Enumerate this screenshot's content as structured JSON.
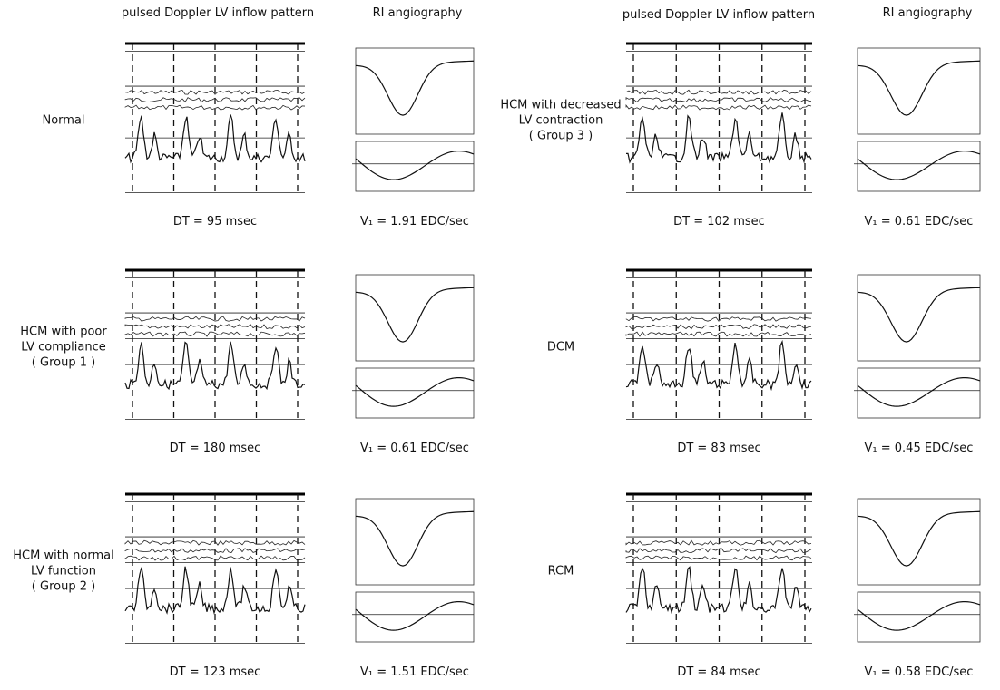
{
  "headers": [
    "pulsed Doppler LV inflow pattern",
    "RI angiography",
    "pulsed Doppler LV inflow pattern",
    "RI angiography"
  ],
  "panels": [
    {
      "label": [
        "Normal"
      ],
      "dt": "DT = 95 msec",
      "v1": "V₁ = 1.91 EDC/sec"
    },
    {
      "label": [
        "HCM with poor",
        "LV compliance",
        "( Group 1 )"
      ],
      "dt": "DT = 180 msec",
      "v1": "V₁ = 0.61 EDC/sec"
    },
    {
      "label": [
        "HCM with normal",
        "LV function",
        "( Group 2 )"
      ],
      "dt": "DT = 123 msec",
      "v1": "V₁ = 1.51 EDC/sec"
    },
    {
      "label": [
        "HCM with decreased",
        "LV contraction",
        "( Group 3 )"
      ],
      "dt": "DT = 102 msec",
      "v1": "V₁ = 0.61 EDC/sec"
    },
    {
      "label": [
        "DCM"
      ],
      "dt": "DT = 83 msec",
      "v1": "V₁ = 0.45 EDC/sec"
    },
    {
      "label": [
        "RCM"
      ],
      "dt": "DT = 84 msec",
      "v1": "V₁ = 0.58 EDC/sec"
    }
  ]
}
